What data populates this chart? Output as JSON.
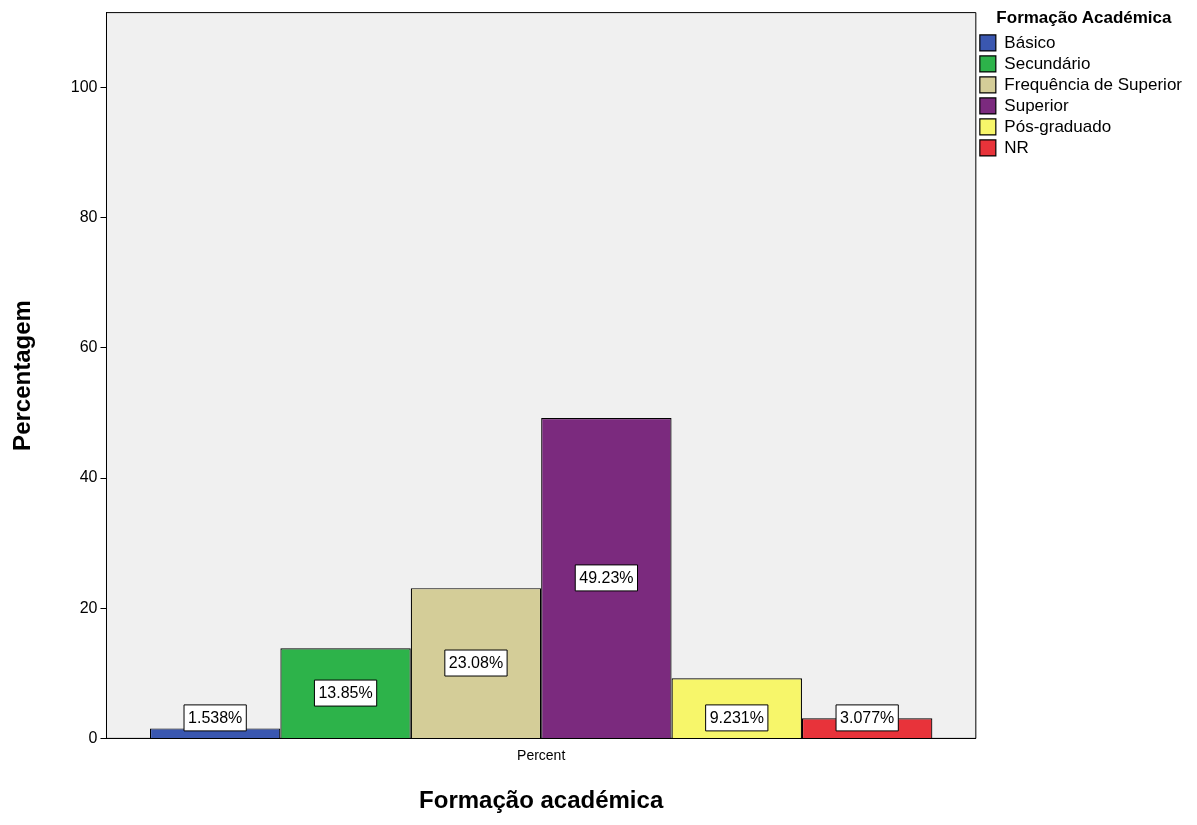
{
  "chart_data": {
    "type": "bar",
    "xlabel": "Formação académica",
    "ylabel": "Percentagem",
    "legend_title": "Formação Académica",
    "legend": "top right",
    "grid": false,
    "categories": [
      "Percent"
    ],
    "ylim": [
      0,
      111.5
    ],
    "yticks": [
      0,
      20,
      40,
      60,
      80,
      100
    ],
    "series": [
      {
        "name": "Básico",
        "color": "#3a57b0",
        "values": [
          1.538
        ],
        "value_labels": [
          "1.538%"
        ]
      },
      {
        "name": "Secundário",
        "color": "#2db34a",
        "values": [
          13.85
        ],
        "value_labels": [
          "13.85%"
        ]
      },
      {
        "name": "Frequência de Superior",
        "color": "#d4cd98",
        "values": [
          23.08
        ],
        "value_labels": [
          "23.08%"
        ]
      },
      {
        "name": "Superior",
        "color": "#7b2a7e",
        "values": [
          49.23
        ],
        "value_labels": [
          "49.23%"
        ]
      },
      {
        "name": "Pós-graduado",
        "color": "#f7f66a",
        "values": [
          9.231
        ],
        "value_labels": [
          "9.231%"
        ]
      },
      {
        "name": "NR",
        "color": "#e8333a",
        "values": [
          3.077
        ],
        "value_labels": [
          "3.077%"
        ]
      }
    ]
  }
}
